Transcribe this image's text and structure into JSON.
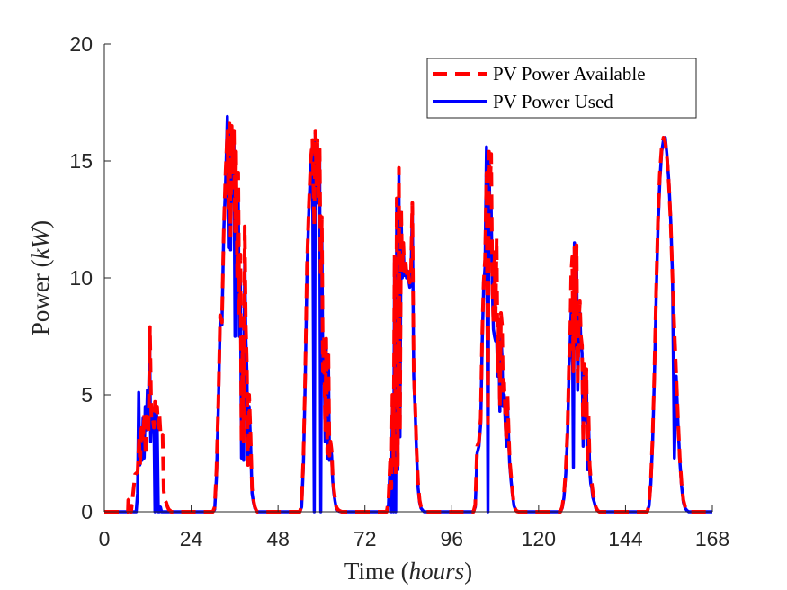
{
  "chart_data": {
    "type": "line",
    "xlabel_prefix": "Time (",
    "xlabel_unit": "hours",
    "xlabel_suffix": ")",
    "ylabel_prefix": "Power (",
    "ylabel_unit": "kW",
    "ylabel_suffix": ")",
    "xlim": [
      0,
      168
    ],
    "ylim": [
      0,
      20
    ],
    "xticks": [
      0,
      24,
      48,
      72,
      96,
      120,
      144,
      168
    ],
    "yticks": [
      0,
      5,
      10,
      15,
      20
    ],
    "grid": false,
    "legend_position": "top-right",
    "series": [
      {
        "name": "PV Power Available",
        "color": "#ff0000",
        "style": "dashed",
        "x": [
          0,
          6.5,
          6.6,
          7.3,
          7.4,
          8.5,
          9.2,
          9.6,
          9.9,
          10.3,
          10.7,
          11,
          11.4,
          11.8,
          12.2,
          12.6,
          13,
          13.4,
          13.7,
          14,
          14.3,
          14.6,
          14.9,
          15.2,
          15.5,
          15.8,
          16.1,
          16.4,
          16.7,
          17.1,
          17.5,
          17.8,
          18.2,
          18.4,
          30,
          30.5,
          31,
          31.5,
          32,
          32.5,
          33,
          33.5,
          34,
          34.3,
          34.6,
          34.9,
          35.2,
          35.5,
          35.8,
          36.1,
          36.4,
          36.7,
          37,
          37.3,
          37.6,
          37.9,
          38.2,
          38.5,
          38.8,
          39.1,
          39.4,
          39.7,
          40,
          40.4,
          40.8,
          41.2,
          41.6,
          42,
          42.3,
          54,
          54.5,
          55,
          55.5,
          56,
          56.5,
          57,
          57.5,
          58,
          58.3,
          58.6,
          58.9,
          59.2,
          59.5,
          59.8,
          60.1,
          60.4,
          60.7,
          61,
          61.3,
          61.6,
          61.9,
          62.2,
          62.5,
          62.8,
          63.1,
          63.4,
          63.8,
          64.1,
          64.5,
          64.9,
          65.3,
          65.6,
          78,
          78.5,
          79,
          79.3,
          79.6,
          79.9,
          80.2,
          80.5,
          80.8,
          81.1,
          81.4,
          81.7,
          82,
          82.3,
          82.6,
          82.9,
          83.2,
          83.5,
          83.8,
          84.1,
          84.4,
          84.7,
          85.1,
          85.5,
          85.9,
          86.3,
          86.7,
          87.1,
          87.5,
          88,
          88.4,
          102,
          102.5,
          103,
          103.5,
          104,
          104.4,
          104.8,
          105.2,
          105.6,
          106,
          106.3,
          106.6,
          106.9,
          107.2,
          107.5,
          107.8,
          108.1,
          108.4,
          108.7,
          109,
          109.3,
          109.6,
          109.9,
          110.2,
          110.5,
          110.8,
          111.1,
          111.4,
          111.7,
          112,
          112.4,
          112.8,
          113.2,
          113.6,
          114,
          114.5,
          126,
          126.5,
          127,
          127.5,
          128,
          128.4,
          128.7,
          129,
          129.3,
          129.6,
          129.9,
          130.2,
          130.5,
          130.8,
          131.1,
          131.4,
          131.7,
          132,
          132.3,
          132.6,
          132.9,
          133.2,
          133.5,
          133.8,
          134.1,
          134.4,
          134.7,
          135,
          135.4,
          135.8,
          136.3,
          136.8,
          150,
          150.5,
          151,
          151.5,
          152,
          152.5,
          153,
          153.5,
          154,
          154.5,
          155,
          155.5,
          156,
          156.5,
          157,
          157.5,
          158,
          158.5,
          159,
          159.5,
          160,
          160.5,
          161,
          161.5,
          162,
          162.5,
          163,
          168
        ],
        "y": [
          0,
          0,
          0.5,
          0.6,
          0,
          1.6,
          1.7,
          3.2,
          2,
          3.8,
          3,
          4.2,
          2.4,
          4.3,
          3.3,
          7.9,
          3.9,
          4,
          3.6,
          4.7,
          4.2,
          4.5,
          3.6,
          4.2,
          3.4,
          3.2,
          3.3,
          0.9,
          0.5,
          0.4,
          0.2,
          0.1,
          0.05,
          0,
          0,
          0.2,
          1.8,
          4.7,
          8.4,
          8.1,
          12,
          14.5,
          16.3,
          13,
          16.6,
          11.8,
          16.5,
          14.5,
          16.3,
          12,
          15.4,
          10,
          14.5,
          8.4,
          11,
          3,
          7.5,
          3,
          12.2,
          8,
          6.3,
          2,
          5,
          3.3,
          1,
          0.5,
          0.2,
          0.05,
          0,
          0,
          0.3,
          2.3,
          5.8,
          10.5,
          13,
          15,
          15.9,
          12.2,
          16.3,
          14,
          15.9,
          13.5,
          15.5,
          10,
          12.6,
          6,
          7.5,
          3.5,
          7.4,
          2.5,
          6.9,
          2.4,
          3,
          2.6,
          1.5,
          1,
          0.5,
          0.2,
          0.1,
          0.05,
          0.02,
          0,
          0,
          0.5,
          2.4,
          1,
          5,
          2,
          11,
          1.5,
          13.4,
          2,
          14.7,
          3.5,
          13,
          10.2,
          11.5,
          10.3,
          10.8,
          10.2,
          10.5,
          10.1,
          9.8,
          10,
          13.2,
          6,
          4.5,
          2.5,
          1.2,
          0.5,
          0.2,
          0.05,
          0,
          0,
          0.3,
          2.8,
          3,
          4,
          7.5,
          9.8,
          10.8,
          14.5,
          3.8,
          15.4,
          14,
          15.3,
          9.8,
          8,
          11.1,
          8.2,
          11.7,
          6,
          8.3,
          4.5,
          8.5,
          8,
          5,
          5.5,
          4,
          3,
          5,
          3.5,
          2.2,
          1.5,
          0.8,
          0.3,
          0.1,
          0.02,
          0,
          0,
          0.2,
          0.7,
          1.8,
          3.5,
          6.5,
          7.4,
          10.2,
          10.9,
          6,
          11.3,
          7.3,
          11.4,
          5.4,
          8,
          9,
          7.5,
          7.1,
          3,
          6.3,
          4.1,
          6.1,
          2,
          4.1,
          2,
          1.4,
          1.2,
          0.8,
          0.5,
          0.2,
          0.05,
          0,
          0,
          0.3,
          1.3,
          3.2,
          6,
          9.5,
          12.5,
          14.5,
          15.6,
          16,
          15.8,
          15.1,
          14,
          12.4,
          10,
          7.8,
          5.9,
          4,
          2.3,
          1.2,
          0.5,
          0.2,
          0.05,
          0,
          0,
          0,
          0,
          0
        ]
      },
      {
        "name": "PV Power Used",
        "color": "#0000ff",
        "style": "solid",
        "x": [
          0,
          8.8,
          9.2,
          9.5,
          9.8,
          10.1,
          10.4,
          10.7,
          11,
          11.3,
          11.6,
          11.9,
          12.2,
          12.5,
          12.8,
          13.1,
          13.4,
          13.7,
          14,
          14.3,
          14.6,
          14.9,
          15.2,
          15.5,
          15.8,
          16.1,
          16.5,
          17,
          18,
          30,
          30.5,
          31,
          31.5,
          32,
          32.5,
          33,
          33.5,
          34,
          34.3,
          34.6,
          34.9,
          35.2,
          35.5,
          35.8,
          36.1,
          36.4,
          36.7,
          37,
          37.3,
          37.6,
          37.9,
          38.2,
          38.5,
          38.8,
          39.1,
          39.4,
          39.7,
          40,
          40.4,
          40.8,
          41.2,
          41.6,
          42,
          42.3,
          54,
          54.5,
          55,
          55.5,
          56,
          56.5,
          57,
          57.5,
          58,
          58.3,
          58.6,
          58.9,
          59.2,
          59.5,
          59.8,
          60.1,
          60.4,
          60.7,
          61,
          61.3,
          61.6,
          61.9,
          62.2,
          62.5,
          62.8,
          63.1,
          63.4,
          63.8,
          64.1,
          64.5,
          64.9,
          65.3,
          65.6,
          78,
          78.5,
          79,
          79.3,
          79.6,
          79.9,
          80.2,
          80.5,
          80.8,
          81.1,
          81.4,
          81.7,
          82,
          82.3,
          82.6,
          82.9,
          83.2,
          83.5,
          83.8,
          84.1,
          84.4,
          84.7,
          85.1,
          85.5,
          85.9,
          86.3,
          86.7,
          87.1,
          87.5,
          88,
          88.4,
          102,
          102.5,
          103,
          103.5,
          104,
          104.4,
          104.8,
          105.2,
          105.6,
          106,
          106.3,
          106.6,
          106.9,
          107.2,
          107.5,
          107.8,
          108.1,
          108.4,
          108.7,
          109,
          109.3,
          109.6,
          109.9,
          110.2,
          110.5,
          110.8,
          111.1,
          111.4,
          111.7,
          112,
          112.4,
          112.8,
          113.2,
          113.6,
          114,
          114.5,
          126,
          126.5,
          127,
          127.5,
          128,
          128.4,
          128.7,
          129,
          129.3,
          129.6,
          129.9,
          130.2,
          130.5,
          130.8,
          131.1,
          131.4,
          131.7,
          132,
          132.3,
          132.6,
          132.9,
          133.2,
          133.5,
          133.8,
          134.1,
          134.4,
          134.7,
          135,
          135.4,
          135.8,
          136.3,
          136.8,
          150,
          150.5,
          151,
          151.5,
          152,
          152.5,
          153,
          153.5,
          154,
          154.5,
          155,
          155.5,
          156,
          156.5,
          157,
          157.5,
          158,
          158.5,
          159,
          159.5,
          160,
          160.5,
          161,
          161.5,
          162,
          162.5,
          163,
          168
        ],
        "y": [
          0,
          0,
          0.8,
          5.1,
          2,
          3,
          2.2,
          4,
          2.3,
          4.5,
          3.5,
          5.2,
          4,
          7.6,
          3,
          4.4,
          3.9,
          4.3,
          0,
          4.5,
          3.8,
          0,
          0,
          0.2,
          0,
          0,
          0,
          0,
          0,
          0,
          0.1,
          1.5,
          4.5,
          8.2,
          8,
          12,
          14,
          16.9,
          11.3,
          16.5,
          11.2,
          16,
          13.8,
          16,
          7.5,
          14.5,
          9.5,
          13.5,
          7.5,
          10,
          2.3,
          6.5,
          2.2,
          11,
          7.5,
          6,
          2.2,
          4.5,
          3,
          0.8,
          0.4,
          0.15,
          0.05,
          0,
          0,
          0.2,
          2,
          5.5,
          10.2,
          12.8,
          14.8,
          15.7,
          0,
          16.2,
          13.5,
          15.7,
          13.2,
          15.2,
          0,
          12.1,
          5.5,
          7.2,
          3,
          7,
          2.3,
          6.7,
          2.2,
          2.8,
          2.4,
          1.3,
          0.8,
          0.4,
          0.15,
          0.05,
          0.02,
          0,
          0,
          0,
          0.3,
          2.2,
          0,
          4.8,
          0,
          10.8,
          0,
          13.2,
          1.8,
          14.5,
          3.2,
          12.8,
          10,
          11.3,
          10.1,
          10.6,
          10,
          10.3,
          9.9,
          9.6,
          9.8,
          13,
          5.8,
          4.3,
          2.3,
          1,
          0.4,
          0.15,
          0.05,
          0,
          0,
          0.2,
          2.5,
          2.8,
          3.8,
          7.2,
          9.6,
          10.5,
          15.6,
          0,
          15.3,
          12,
          13,
          9.5,
          7.8,
          7.5,
          7.3,
          7.5,
          5.8,
          7.3,
          4.3,
          7.5,
          6.6,
          4.5,
          5,
          3.8,
          2.8,
          4.6,
          3.2,
          2,
          1.3,
          0.7,
          0.25,
          0.1,
          0.02,
          0,
          0,
          0.15,
          0.6,
          1.6,
          3.2,
          6.2,
          7.2,
          8.6,
          8.7,
          1.9,
          11.5,
          7,
          10.8,
          5.2,
          7.7,
          8.5,
          7.2,
          6.8,
          2.8,
          6,
          3.9,
          5.8,
          1.8,
          3.9,
          1.8,
          1.2,
          1,
          0.6,
          0.4,
          0.15,
          0.05,
          0,
          0,
          0.25,
          1.2,
          3,
          5.8,
          9.2,
          12.2,
          14.2,
          15.4,
          15.9,
          16,
          15.2,
          14.1,
          12.5,
          10.1,
          2.3,
          5.8,
          3.8,
          2.2,
          1.1,
          0.4,
          0.15,
          0.05,
          0,
          0,
          0,
          0,
          0
        ]
      }
    ]
  }
}
